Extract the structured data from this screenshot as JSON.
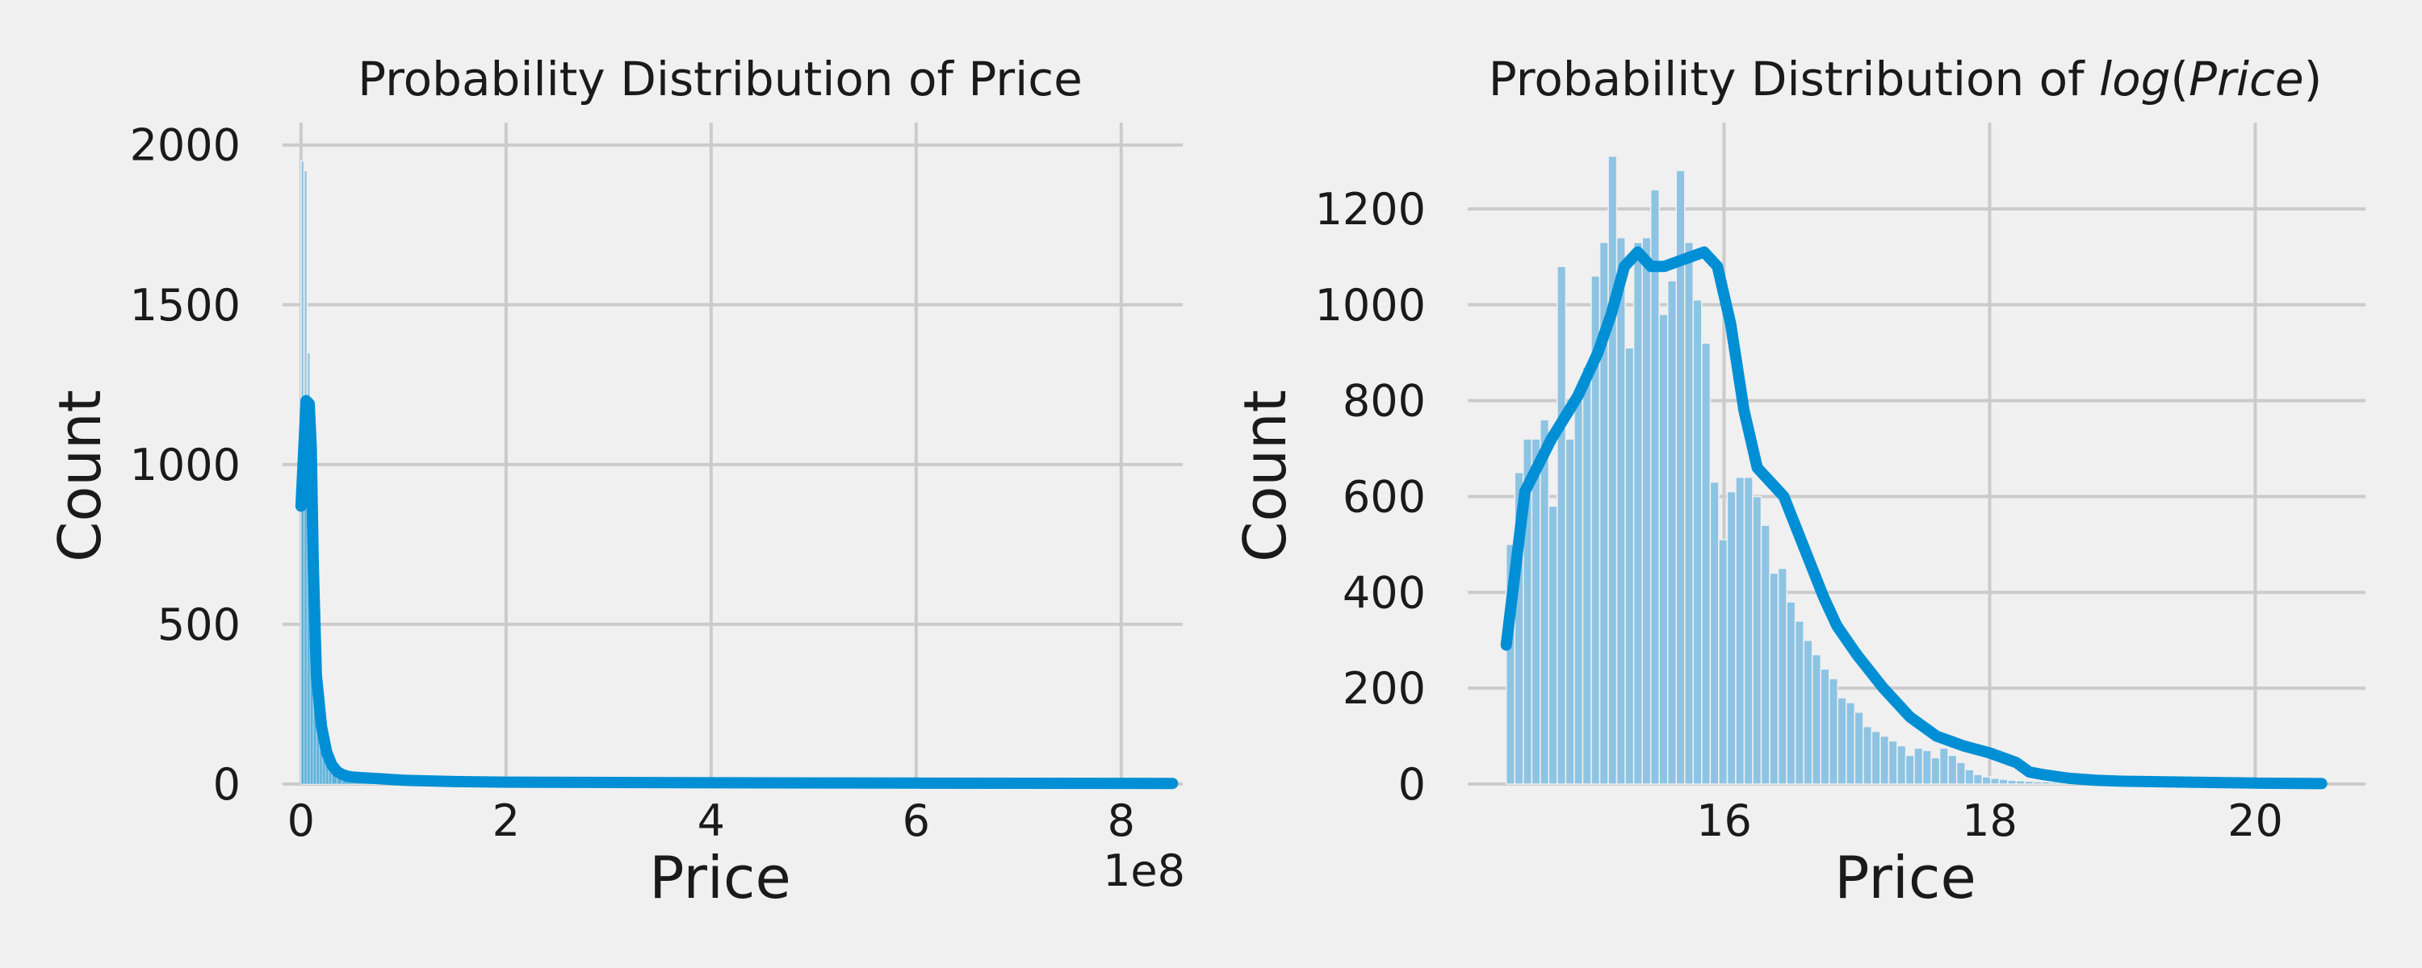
{
  "chart_data": [
    {
      "type": "histogram",
      "title": "Probability Distribution of Price",
      "xlabel": "Price",
      "ylabel": "Count",
      "x_offset_label": "1e8",
      "xlim": [
        -0.18,
        8.6
      ],
      "ylim": [
        0,
        2070
      ],
      "xticks": [
        0,
        2,
        4,
        6,
        8
      ],
      "yticks": [
        0,
        500,
        1000,
        1500,
        2000
      ],
      "grid": true,
      "bins": [
        {
          "x0": 0.0,
          "x1": 0.03,
          "count": 1950
        },
        {
          "x0": 0.03,
          "x1": 0.06,
          "count": 1920
        },
        {
          "x0": 0.06,
          "x1": 0.09,
          "count": 1350
        },
        {
          "x0": 0.09,
          "x1": 0.12,
          "count": 1000
        },
        {
          "x0": 0.12,
          "x1": 0.15,
          "count": 500
        },
        {
          "x0": 0.15,
          "x1": 0.18,
          "count": 250
        },
        {
          "x0": 0.18,
          "x1": 0.21,
          "count": 130
        },
        {
          "x0": 0.21,
          "x1": 0.24,
          "count": 80
        },
        {
          "x0": 0.24,
          "x1": 0.27,
          "count": 55
        },
        {
          "x0": 0.27,
          "x1": 0.3,
          "count": 40
        },
        {
          "x0": 0.3,
          "x1": 0.35,
          "count": 30
        },
        {
          "x0": 0.35,
          "x1": 0.4,
          "count": 22
        },
        {
          "x0": 0.4,
          "x1": 0.5,
          "count": 16
        },
        {
          "x0": 0.5,
          "x1": 0.7,
          "count": 10
        },
        {
          "x0": 0.7,
          "x1": 1.0,
          "count": 6
        },
        {
          "x0": 1.0,
          "x1": 2.0,
          "count": 3
        },
        {
          "x0": 2.0,
          "x1": 8.5,
          "count": 1
        }
      ],
      "kde": {
        "x": [
          0.0,
          0.05,
          0.08,
          0.1,
          0.12,
          0.15,
          0.2,
          0.25,
          0.3,
          0.35,
          0.4,
          0.45,
          0.5,
          0.6,
          0.7,
          0.8,
          1.0,
          1.5,
          2.0,
          4.0,
          6.0,
          8.5
        ],
        "y": [
          870,
          1200,
          1190,
          1050,
          680,
          340,
          180,
          100,
          60,
          40,
          30,
          25,
          22,
          20,
          18,
          16,
          12,
          8,
          6,
          4,
          3,
          2
        ]
      }
    },
    {
      "type": "histogram",
      "title": "Probability Distribution of ",
      "title_italic": "log",
      "title_paren_open": "(",
      "title_italic2": "Price",
      "title_paren_close": ")",
      "xlabel": "Price",
      "ylabel": "Count",
      "xlim": [
        14.07,
        20.83
      ],
      "ylim": [
        0,
        1380
      ],
      "xticks": [
        16,
        18,
        20
      ],
      "yticks": [
        0,
        200,
        400,
        600,
        800,
        1000,
        1200
      ],
      "grid": true,
      "bin_start": 14.36,
      "bin_width": 0.064,
      "counts": [
        500,
        650,
        720,
        720,
        760,
        580,
        1080,
        720,
        800,
        870,
        1060,
        1130,
        1310,
        1140,
        910,
        1130,
        1140,
        1240,
        980,
        1050,
        1280,
        1130,
        1010,
        920,
        630,
        510,
        610,
        640,
        640,
        600,
        540,
        440,
        450,
        380,
        340,
        300,
        270,
        240,
        220,
        180,
        170,
        150,
        120,
        110,
        100,
        90,
        80,
        60,
        75,
        70,
        55,
        75,
        60,
        45,
        30,
        20,
        15,
        12,
        10,
        8,
        7,
        6,
        5,
        5,
        4,
        4,
        3,
        3,
        3,
        2,
        2,
        2,
        2,
        2,
        2,
        1,
        1,
        1,
        1,
        1,
        1,
        1,
        1,
        1,
        1,
        1,
        1,
        1,
        1,
        1,
        1,
        1
      ],
      "kde": {
        "x": [
          14.36,
          14.5,
          14.7,
          14.9,
          15.05,
          15.15,
          15.25,
          15.35,
          15.45,
          15.55,
          15.65,
          15.75,
          15.85,
          15.95,
          16.05,
          16.15,
          16.25,
          16.35,
          16.45,
          16.55,
          16.65,
          16.75,
          16.85,
          17.0,
          17.2,
          17.4,
          17.6,
          17.8,
          18.0,
          18.2,
          18.3,
          18.4,
          18.6,
          18.8,
          19.0,
          19.5,
          20.0,
          20.5
        ],
        "y": [
          290,
          610,
          720,
          810,
          900,
          980,
          1080,
          1110,
          1080,
          1080,
          1090,
          1100,
          1110,
          1080,
          960,
          780,
          660,
          630,
          600,
          530,
          460,
          390,
          330,
          270,
          200,
          140,
          100,
          80,
          65,
          45,
          25,
          20,
          12,
          8,
          6,
          4,
          2,
          1
        ]
      }
    }
  ]
}
